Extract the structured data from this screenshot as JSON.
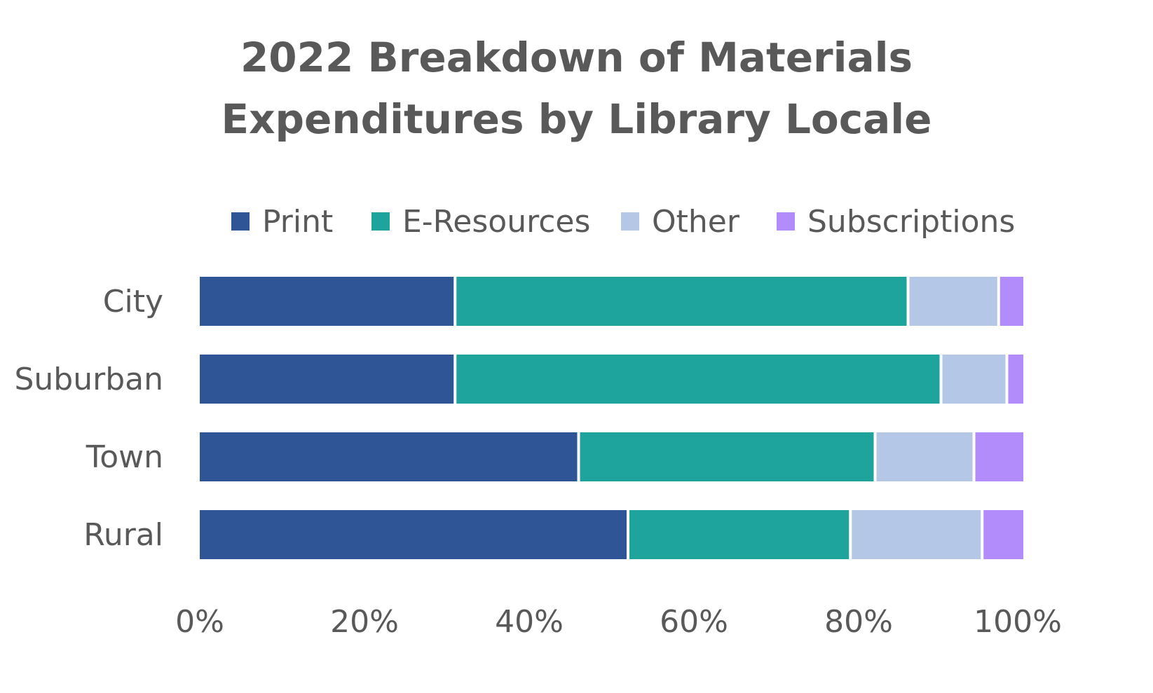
{
  "chart_data": {
    "type": "bar",
    "orientation": "horizontal",
    "stacked": "percent",
    "title": [
      "2022 Breakdown of Materials",
      "Expenditures by Library Locale"
    ],
    "categories": [
      "City",
      "Suburban",
      "Town",
      "Rural"
    ],
    "series": [
      {
        "name": "Print",
        "color": "#2F5597",
        "values": [
          31,
          31,
          46,
          52
        ]
      },
      {
        "name": "E-Resources",
        "color": "#1FA39D",
        "values": [
          55,
          59,
          36,
          27
        ]
      },
      {
        "name": "Other",
        "color": "#B4C7E7",
        "values": [
          11,
          8,
          12,
          16
        ]
      },
      {
        "name": "Subscriptions",
        "color": "#B18CFA",
        "values": [
          3,
          2,
          6,
          5
        ]
      }
    ],
    "xlim": [
      0,
      100
    ],
    "xticks": [
      "0%",
      "20%",
      "40%",
      "60%",
      "80%",
      "100%"
    ],
    "xlabel": "",
    "ylabel": "",
    "legend_position": "top",
    "grid": false
  }
}
